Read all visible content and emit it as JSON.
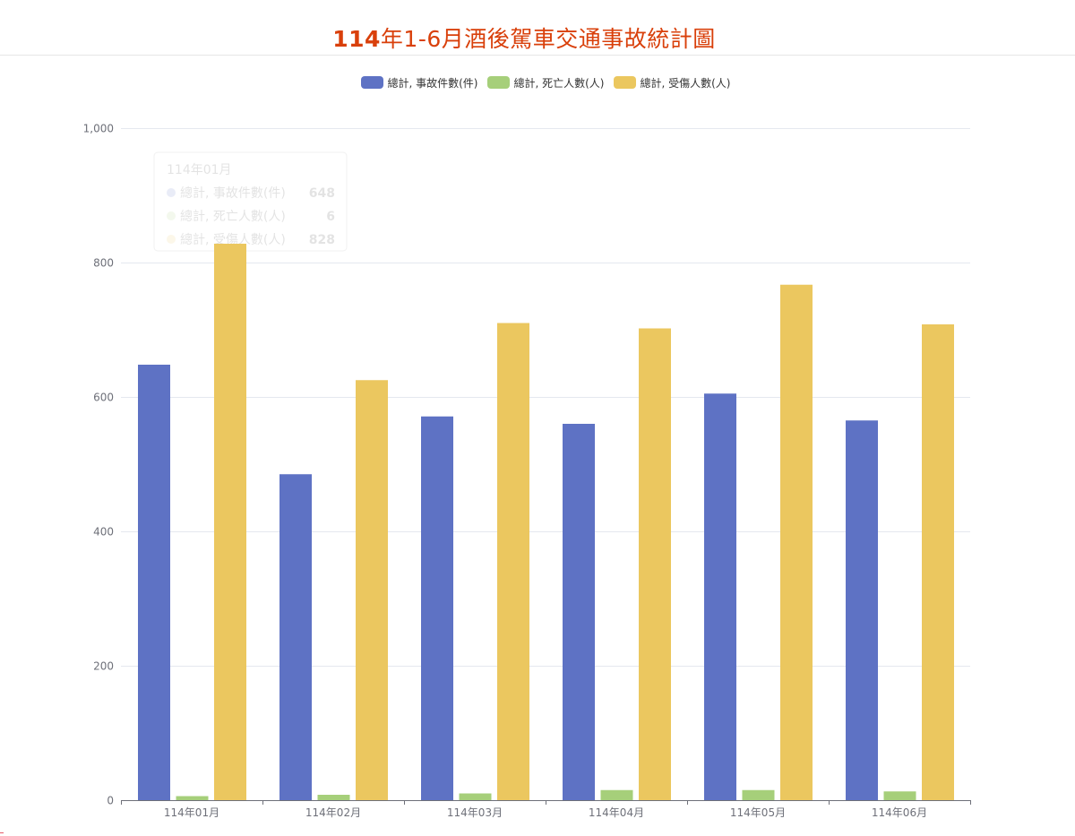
{
  "page": {
    "title_bold": "114",
    "title_rest": "年1-6月酒後駕車交通事故統計圖"
  },
  "legend": [
    {
      "label": "總計, 事故件數(件)",
      "color": "#5e72c4"
    },
    {
      "label": "總計, 死亡人數(人)",
      "color": "#a6cf7a"
    },
    {
      "label": "總計, 受傷人數(人)",
      "color": "#ebc75f"
    }
  ],
  "chart_data": {
    "type": "bar",
    "categories": [
      "114年01月",
      "114年02月",
      "114年03月",
      "114年04月",
      "114年05月",
      "114年06月"
    ],
    "series": [
      {
        "name": "總計, 事故件數(件)",
        "color": "#5e72c4",
        "values": [
          648,
          485,
          571,
          560,
          605,
          565
        ]
      },
      {
        "name": "總計, 死亡人數(人)",
        "color": "#a6cf7a",
        "values": [
          6,
          8,
          10,
          15,
          15,
          13
        ]
      },
      {
        "name": "總計, 受傷人數(人)",
        "color": "#ebc75f",
        "values": [
          828,
          625,
          710,
          702,
          767,
          708
        ]
      }
    ],
    "ylim": [
      0,
      1000
    ],
    "yticks": [
      0,
      200,
      400,
      600,
      800,
      1000
    ],
    "ytick_labels": [
      "0",
      "200",
      "400",
      "600",
      "800",
      "1,000"
    ],
    "grid": true,
    "legend_position": "top-center",
    "tooltip": {
      "title": "114年01月",
      "rows": [
        {
          "label": "總計, 事故件數(件)",
          "value": "648"
        },
        {
          "label": "總計, 死亡人數(人)",
          "value": "6"
        },
        {
          "label": "總計, 受傷人數(人)",
          "value": "828"
        }
      ]
    }
  }
}
